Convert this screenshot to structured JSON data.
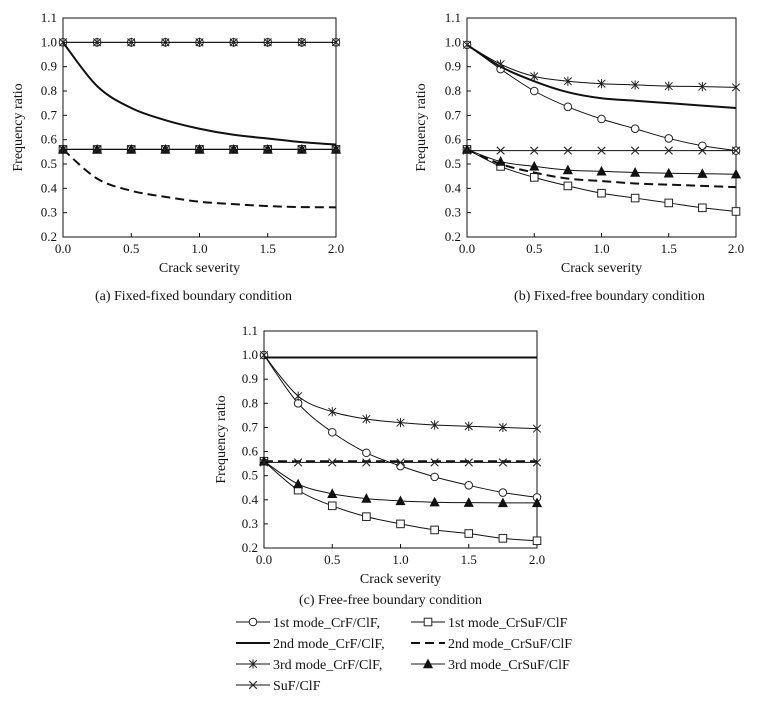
{
  "chart_data": [
    {
      "panel": "a",
      "type": "line",
      "caption": "(a) Fixed-fixed boundary condition",
      "xlabel": "Crack severity",
      "ylabel": "Frequency ratio",
      "xlim": [
        0,
        2.0
      ],
      "ylim": [
        0.2,
        1.1
      ],
      "xticks": [
        "0.0",
        "0.5",
        "1.0",
        "1.5",
        "2.0"
      ],
      "yticks": [
        "0.2",
        "0.3",
        "0.4",
        "0.5",
        "0.6",
        "0.7",
        "0.8",
        "0.9",
        "1.0",
        "1.1"
      ],
      "x": [
        0,
        0.25,
        0.5,
        0.75,
        1.0,
        1.25,
        1.5,
        1.75,
        2.0
      ],
      "series": [
        {
          "key": "m1_crf",
          "values": [
            1.0,
            1.0,
            1.0,
            1.0,
            1.0,
            1.0,
            1.0,
            1.0,
            1.0
          ]
        },
        {
          "key": "m1_crsuf",
          "values": [
            0.56,
            0.56,
            0.56,
            0.56,
            0.56,
            0.56,
            0.56,
            0.56,
            0.56
          ]
        },
        {
          "key": "m2_crf",
          "values": [
            1.0,
            0.82,
            0.73,
            0.68,
            0.645,
            0.62,
            0.605,
            0.59,
            0.58
          ]
        },
        {
          "key": "m2_crsuf",
          "values": [
            0.56,
            0.44,
            0.39,
            0.365,
            0.345,
            0.335,
            0.327,
            0.323,
            0.322
          ]
        },
        {
          "key": "m3_crf",
          "values": [
            1.0,
            1.0,
            1.0,
            1.0,
            1.0,
            1.0,
            1.0,
            1.0,
            1.0
          ]
        },
        {
          "key": "m3_crsuf",
          "values": [
            0.56,
            0.56,
            0.56,
            0.56,
            0.56,
            0.56,
            0.56,
            0.56,
            0.56
          ]
        },
        {
          "key": "suf",
          "values": [
            0.56,
            0.56,
            0.56,
            0.56,
            0.56,
            0.56,
            0.56,
            0.56,
            0.56
          ]
        }
      ]
    },
    {
      "panel": "b",
      "type": "line",
      "caption": "(b) Fixed-free boundary condition",
      "xlabel": "Crack severity",
      "ylabel": "Frequency ratio",
      "xlim": [
        0,
        2.0
      ],
      "ylim": [
        0.2,
        1.1
      ],
      "xticks": [
        "0.0",
        "0.5",
        "1.0",
        "1.5",
        "2.0"
      ],
      "yticks": [
        "0.2",
        "0.3",
        "0.4",
        "0.5",
        "0.6",
        "0.7",
        "0.8",
        "0.9",
        "1.0",
        "1.1"
      ],
      "x": [
        0,
        0.25,
        0.5,
        0.75,
        1.0,
        1.25,
        1.5,
        1.75,
        2.0
      ],
      "series": [
        {
          "key": "m1_crf",
          "values": [
            0.99,
            0.89,
            0.8,
            0.735,
            0.685,
            0.645,
            0.605,
            0.575,
            0.555
          ]
        },
        {
          "key": "m1_crsuf",
          "values": [
            0.56,
            0.49,
            0.445,
            0.41,
            0.38,
            0.36,
            0.34,
            0.32,
            0.305
          ]
        },
        {
          "key": "m2_crf",
          "values": [
            0.99,
            0.9,
            0.84,
            0.795,
            0.77,
            0.76,
            0.75,
            0.74,
            0.73
          ]
        },
        {
          "key": "m2_crsuf",
          "values": [
            0.56,
            0.5,
            0.465,
            0.44,
            0.43,
            0.42,
            0.415,
            0.41,
            0.405
          ]
        },
        {
          "key": "m3_crf",
          "values": [
            0.99,
            0.91,
            0.86,
            0.84,
            0.83,
            0.825,
            0.82,
            0.818,
            0.815
          ]
        },
        {
          "key": "m3_crsuf",
          "values": [
            0.56,
            0.51,
            0.49,
            0.475,
            0.47,
            0.465,
            0.462,
            0.46,
            0.458
          ]
        },
        {
          "key": "suf",
          "values": [
            0.555,
            0.555,
            0.555,
            0.555,
            0.555,
            0.555,
            0.555,
            0.555,
            0.555
          ]
        }
      ]
    },
    {
      "panel": "c",
      "type": "line",
      "caption": "(c) Free-free boundary condition",
      "xlabel": "Crack severity",
      "ylabel": "Frequency ratio",
      "xlim": [
        0,
        2.0
      ],
      "ylim": [
        0.2,
        1.1
      ],
      "xticks": [
        "0.0",
        "0.5",
        "1.0",
        "1.5",
        "2.0"
      ],
      "yticks": [
        "0.2",
        "0.3",
        "0.4",
        "0.5",
        "0.6",
        "0.7",
        "0.8",
        "0.9",
        "1.0",
        "1.1"
      ],
      "x": [
        0,
        0.25,
        0.5,
        0.75,
        1.0,
        1.25,
        1.5,
        1.75,
        2.0
      ],
      "series": [
        {
          "key": "m1_crf",
          "values": [
            1.0,
            0.8,
            0.68,
            0.595,
            0.54,
            0.495,
            0.46,
            0.43,
            0.41
          ]
        },
        {
          "key": "m1_crsuf",
          "values": [
            0.56,
            0.44,
            0.375,
            0.33,
            0.3,
            0.275,
            0.26,
            0.24,
            0.23
          ]
        },
        {
          "key": "m2_crf",
          "values": [
            0.99,
            0.99,
            0.99,
            0.99,
            0.99,
            0.99,
            0.99,
            0.99,
            0.99
          ]
        },
        {
          "key": "m2_crsuf",
          "values": [
            0.56,
            0.56,
            0.56,
            0.56,
            0.56,
            0.56,
            0.56,
            0.56,
            0.56
          ]
        },
        {
          "key": "m3_crf",
          "values": [
            1.0,
            0.83,
            0.765,
            0.735,
            0.72,
            0.71,
            0.705,
            0.7,
            0.695
          ]
        },
        {
          "key": "m3_crsuf",
          "values": [
            0.56,
            0.465,
            0.425,
            0.405,
            0.395,
            0.39,
            0.388,
            0.387,
            0.387
          ]
        },
        {
          "key": "suf",
          "values": [
            0.555,
            0.555,
            0.555,
            0.555,
            0.555,
            0.555,
            0.555,
            0.555,
            0.555
          ]
        }
      ]
    }
  ],
  "legend": {
    "items": [
      {
        "key": "m1_crf",
        "label": "1st mode_CrF/ClF,",
        "marker": "circle",
        "dash": "solid",
        "weight": "thin"
      },
      {
        "key": "m1_crsuf",
        "label": "1st mode_CrSuF/ClF",
        "marker": "square",
        "dash": "solid",
        "weight": "thin"
      },
      {
        "key": "m2_crf",
        "label": "2nd mode_CrF/ClF,",
        "marker": "none",
        "dash": "solid",
        "weight": "thick"
      },
      {
        "key": "m2_crsuf",
        "label": "2nd mode_CrSuF/ClF",
        "marker": "none",
        "dash": "dashed",
        "weight": "thick"
      },
      {
        "key": "m3_crf",
        "label": "3rd mode_CrF/ClF,",
        "marker": "asterisk",
        "dash": "solid",
        "weight": "thin"
      },
      {
        "key": "m3_crsuf",
        "label": "3rd mode_CrSuF/ClF",
        "marker": "triangle",
        "dash": "solid",
        "weight": "thin"
      },
      {
        "key": "suf",
        "label": "SuF/ClF",
        "marker": "x",
        "dash": "solid",
        "weight": "thin"
      }
    ]
  }
}
